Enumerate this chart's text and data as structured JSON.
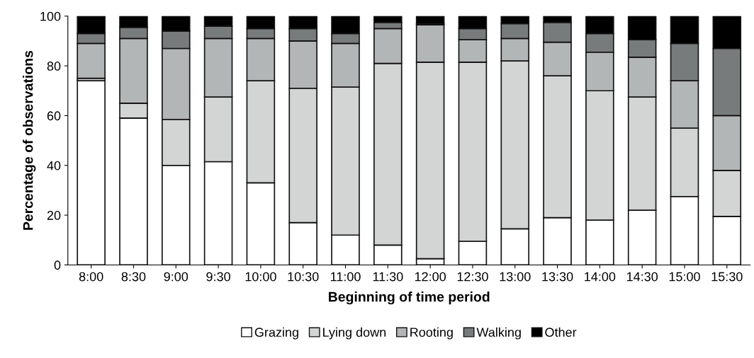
{
  "chart_data": {
    "type": "bar",
    "stacked": true,
    "xlabel": "Beginning of time period",
    "ylabel": "Percentage of observations",
    "categories": [
      "8:00",
      "8:30",
      "9:00",
      "9:30",
      "10:00",
      "10:30",
      "11:00",
      "11:30",
      "12:00",
      "12:30",
      "13:00",
      "13:30",
      "14:00",
      "14:30",
      "15:00",
      "15:30"
    ],
    "series": [
      {
        "name": "Grazing",
        "color": "#ffffff",
        "values": [
          74,
          59,
          40,
          41.5,
          33,
          17,
          12,
          8,
          2.5,
          9.5,
          14.5,
          19,
          18,
          22,
          27.5,
          19.5
        ]
      },
      {
        "name": "Lying down",
        "color": "#d3d5d4",
        "values": [
          1,
          6,
          18.5,
          26,
          41,
          54,
          59.5,
          73,
          79,
          72,
          67.5,
          57,
          52,
          45.5,
          27.5,
          18.5
        ]
      },
      {
        "name": "Rooting",
        "color": "#b3b6b7",
        "values": [
          14,
          26,
          28.5,
          23.5,
          17,
          19,
          17.5,
          14,
          15,
          9,
          9,
          13.5,
          15.5,
          16,
          19,
          22
        ]
      },
      {
        "name": "Walking",
        "color": "#787b7c",
        "values": [
          4,
          4.5,
          7,
          5,
          4,
          5,
          4,
          2.5,
          0.5,
          4.5,
          6,
          8,
          7.5,
          7,
          15,
          27
        ]
      },
      {
        "name": "Other",
        "color": "#000000",
        "values": [
          7,
          4.5,
          6,
          4,
          5,
          5,
          7,
          2.5,
          3,
          5,
          3,
          2.5,
          7,
          9.5,
          11,
          13
        ]
      }
    ],
    "ylim": [
      0,
      100
    ],
    "yticks": [
      0,
      20,
      40,
      60,
      80,
      100
    ],
    "grid": false,
    "legend": "bottom"
  }
}
